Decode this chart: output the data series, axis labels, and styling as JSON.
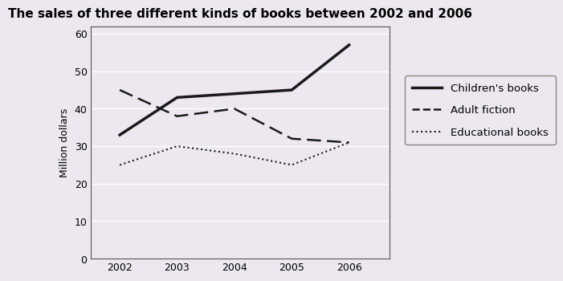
{
  "title": "The sales of three different kinds of books between 2002 and 2006",
  "ylabel": "Million dollars",
  "years": [
    2002,
    2003,
    2004,
    2005,
    2006
  ],
  "children_books": [
    33,
    43,
    44,
    45,
    57
  ],
  "adult_fiction": [
    45,
    38,
    40,
    32,
    31
  ],
  "educational_books": [
    25,
    30,
    28,
    25,
    31
  ],
  "ylim": [
    0,
    62
  ],
  "yticks": [
    0,
    10,
    20,
    30,
    40,
    50,
    60
  ],
  "xlim": [
    2001.5,
    2006.7
  ],
  "background_color": "#ede8f0",
  "plot_bg_color": "#ede8f0",
  "line_color": "#1a1a1a",
  "title_fontsize": 11,
  "axis_fontsize": 9,
  "legend_fontsize": 9.5
}
